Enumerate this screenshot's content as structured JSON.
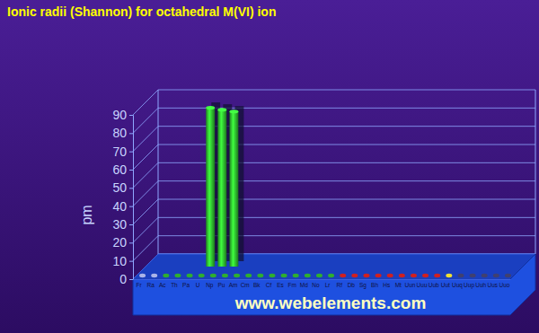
{
  "chart_data": {
    "type": "bar",
    "title": "Ionic radii (Shannon) for octahedral M(VI) ion",
    "y_label": "pm",
    "annotations": [
      "www.webelements.com"
    ],
    "categories": [
      "Fr",
      "Ra",
      "Ac",
      "Th",
      "Pa",
      "U",
      "Np",
      "Pu",
      "Am",
      "Cm",
      "Bk",
      "Cf",
      "Es",
      "Fm",
      "Md",
      "No",
      "Lr",
      "Rf",
      "Db",
      "Sg",
      "Bh",
      "Hs",
      "Mt",
      "Uun",
      "Uuu",
      "Uub",
      "Uut",
      "Uuq",
      "Uup",
      "Uuh",
      "Uus",
      "Uuo"
    ],
    "values": [
      null,
      null,
      null,
      null,
      null,
      87,
      86,
      85,
      null,
      null,
      null,
      null,
      null,
      null,
      null,
      null,
      null,
      null,
      null,
      null,
      null,
      null,
      null,
      null,
      null,
      null,
      null,
      null,
      null,
      null,
      null,
      null
    ],
    "color": "#33cc33",
    "ylim": [
      0,
      90
    ],
    "yticks": [
      0,
      10,
      20,
      30,
      40,
      50,
      60,
      70,
      80,
      90
    ],
    "grid": true
  }
}
